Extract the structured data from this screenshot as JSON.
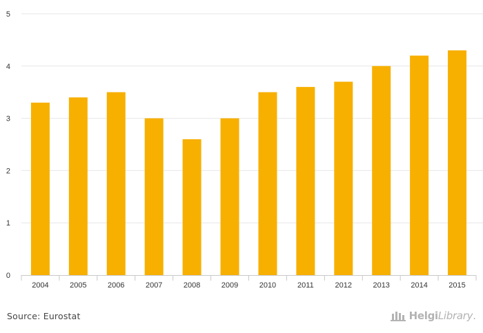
{
  "chart_data": {
    "type": "bar",
    "title": "",
    "xlabel": "",
    "ylabel": "",
    "categories": [
      "2004",
      "2005",
      "2006",
      "2007",
      "2008",
      "2009",
      "2010",
      "2011",
      "2012",
      "2013",
      "2014",
      "2015"
    ],
    "values": [
      3.3,
      3.4,
      3.5,
      3.0,
      2.6,
      3.0,
      3.5,
      3.6,
      3.7,
      4.0,
      4.2,
      4.3
    ],
    "ylim": [
      0,
      5
    ],
    "yticks": [
      "0",
      "1",
      "2",
      "3",
      "4",
      "5"
    ],
    "grid": true,
    "bar_color": "#f7b000",
    "legend": "none"
  },
  "footer": {
    "source": "Source: Eurostat",
    "brand_a": "Helgi",
    "brand_b": "Library",
    "brand_dot": "."
  }
}
